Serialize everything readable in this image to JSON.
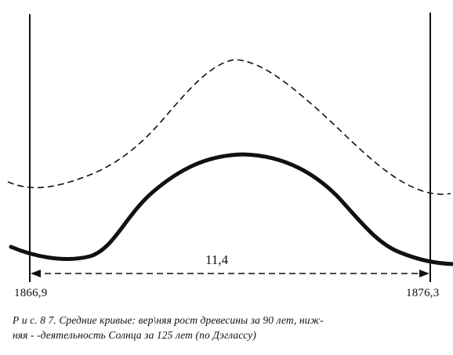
{
  "figure": {
    "left_label": "1866,9",
    "right_label": "1876,3",
    "interval_label": "11,4"
  },
  "caption": {
    "line1": "Р и с. 8 7. Средние кривые: вер\\няя    рост древесины за 90 лет, ниж-",
    "line2": "няя - -деятельность Солнца за 125 лет (по Дэглассу)"
  },
  "chart_data": {
    "type": "line",
    "x_range": [
      1866.9,
      1876.3
    ],
    "interval": 11.4,
    "series": [
      {
        "style": "dashed",
        "shape": "single-peak curve"
      },
      {
        "style": "solid",
        "shape": "single-peak curve"
      }
    ]
  }
}
